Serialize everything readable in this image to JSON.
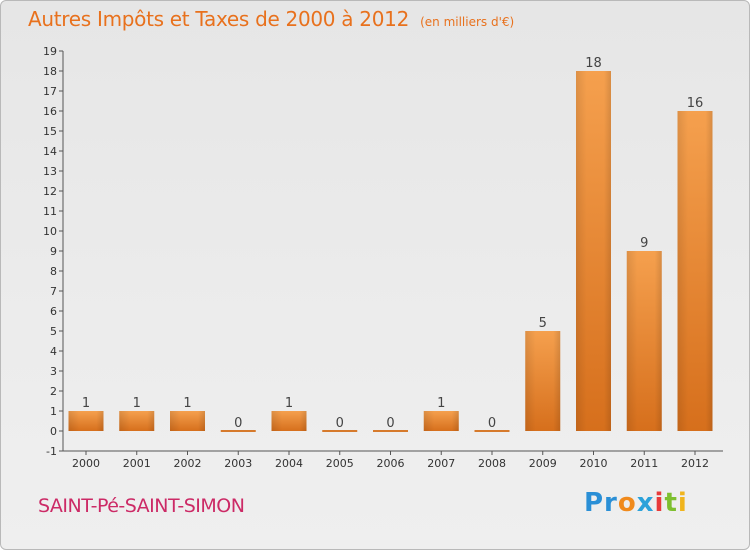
{
  "chart_data": {
    "type": "bar",
    "title": "Autres Impôts et Taxes de 2000 à 2012",
    "subtitle": "(en milliers d'€)",
    "categories": [
      "2000",
      "2001",
      "2002",
      "2003",
      "2004",
      "2005",
      "2006",
      "2007",
      "2008",
      "2009",
      "2010",
      "2011",
      "2012"
    ],
    "values": [
      1,
      1,
      1,
      0,
      1,
      0,
      0,
      1,
      0,
      5,
      18,
      9,
      16
    ],
    "xlabel": "",
    "ylabel": "",
    "ylim": [
      -1,
      19
    ],
    "yticks": [
      "-1",
      "0",
      "1",
      "2",
      "3",
      "4",
      "5",
      "6",
      "7",
      "8",
      "9",
      "10",
      "11",
      "12",
      "13",
      "14",
      "15",
      "16",
      "17",
      "18",
      "19"
    ],
    "grid": false,
    "bar_color": "#e8893a"
  },
  "footer": {
    "city": "SAINT-Pé-SAINT-SIMON",
    "logo": {
      "p1": "Pr",
      "p2": "o",
      "p3": "x",
      "p4": "i",
      "p5": "t",
      "p6": "i"
    }
  }
}
